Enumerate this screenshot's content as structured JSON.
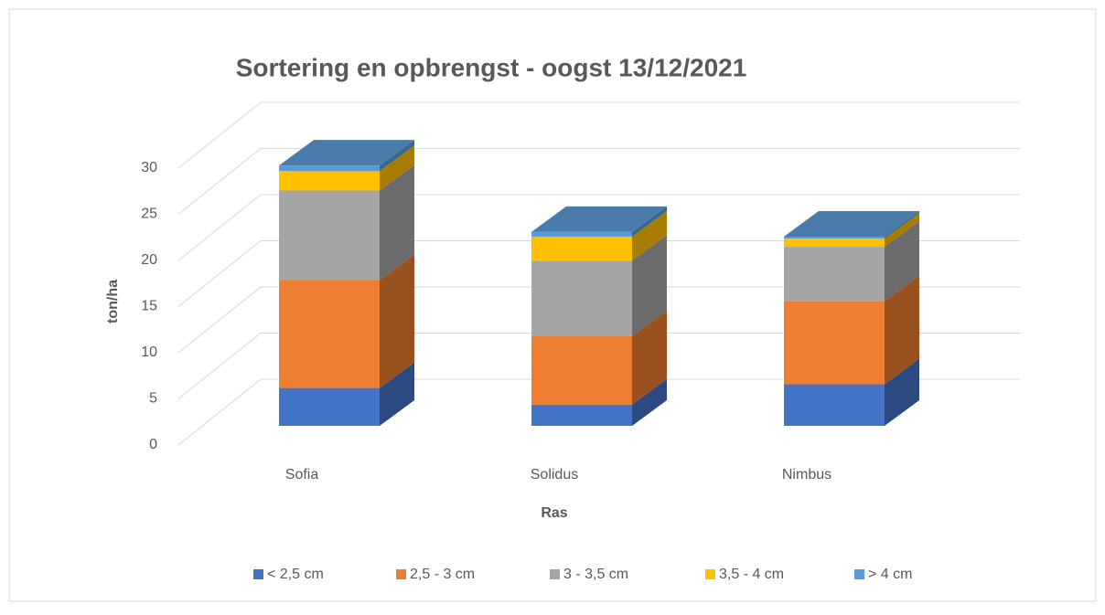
{
  "chart_data": {
    "type": "bar3d_stacked",
    "title": "Sortering en opbrengst - oogst 13/12/2021",
    "x_label": "Ras",
    "y_label": "ton/ha",
    "categories": [
      "Sofia",
      "Solidus",
      "Nimbus"
    ],
    "series": [
      {
        "name": "< 2,5 cm",
        "color": "#4472c4",
        "values": [
          4.1,
          2.3,
          4.5
        ]
      },
      {
        "name": "2,5 - 3 cm",
        "color": "#ed7d31",
        "values": [
          11.7,
          7.4,
          9.0
        ]
      },
      {
        "name": "3 - 3,5 cm",
        "color": "#a5a5a5",
        "values": [
          9.7,
          8.2,
          5.9
        ]
      },
      {
        "name": "3,5 - 4 cm",
        "color": "#ffc000",
        "values": [
          2.1,
          2.6,
          0.9
        ]
      },
      {
        "name": "> 4 cm",
        "color": "#5b9bd5",
        "values": [
          0.6,
          0.5,
          0.2
        ]
      }
    ],
    "ylim": [
      0,
      30
    ],
    "yticks": [
      0,
      5,
      10,
      15,
      20,
      25,
      30
    ],
    "grid": true,
    "legend": "bottom"
  }
}
